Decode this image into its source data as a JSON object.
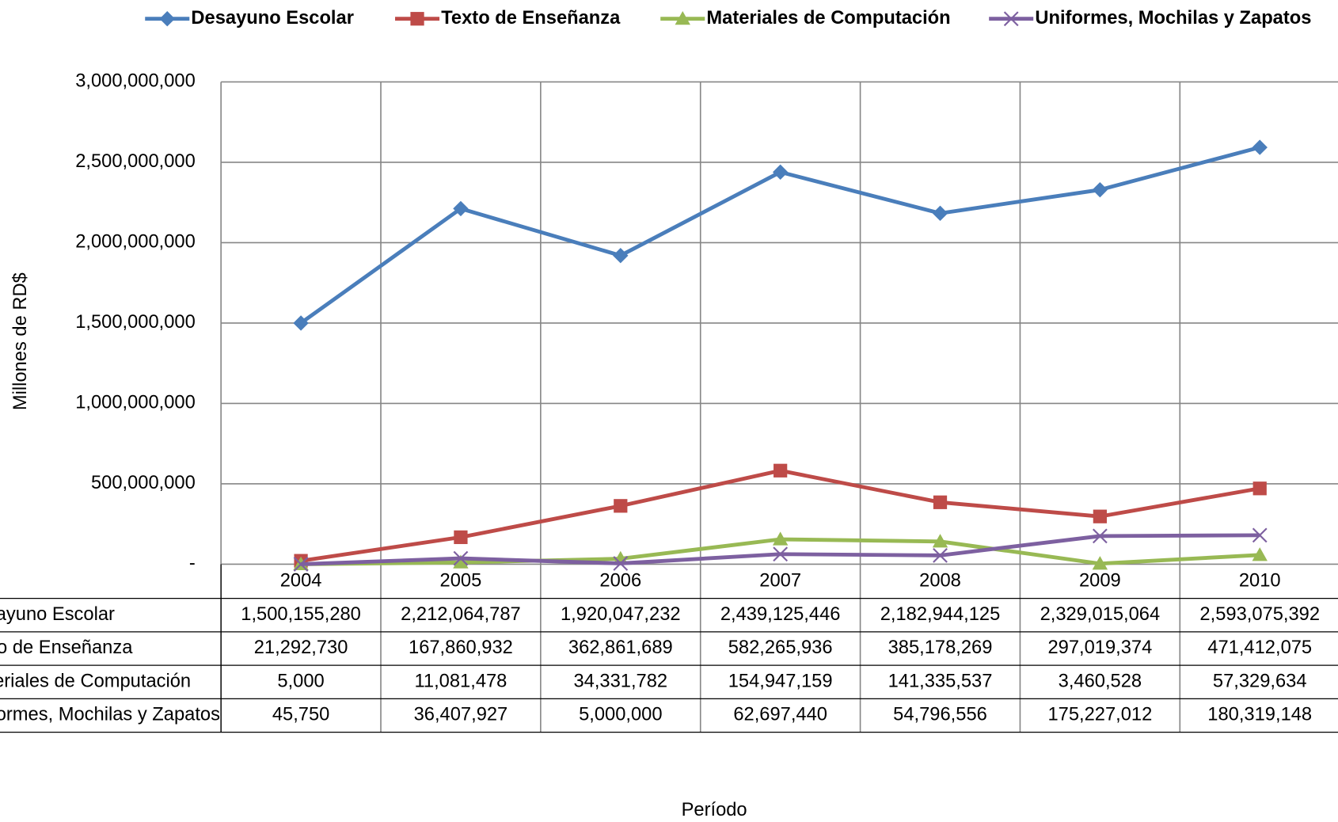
{
  "chart_data": {
    "type": "line",
    "categories": [
      "2004",
      "2005",
      "2006",
      "2007",
      "2008",
      "2009",
      "2010"
    ],
    "series": [
      {
        "name": "Desayuno Escolar",
        "color": "#4a7ebb",
        "marker": "diamond",
        "values": [
          1500155280,
          2212064787,
          1920047232,
          2439125446,
          2182944125,
          2329015064,
          2593075392
        ],
        "value_labels": [
          "1,500,155,280",
          "2,212,064,787",
          "1,920,047,232",
          "2,439,125,446",
          "2,182,944,125",
          "2,329,015,064",
          "2,593,075,392"
        ]
      },
      {
        "name": "Texto de Enseñanza",
        "color": "#be4b48",
        "marker": "square",
        "values": [
          21292730,
          167860932,
          362861689,
          582265936,
          385178269,
          297019374,
          471412075
        ],
        "value_labels": [
          "21,292,730",
          "167,860,932",
          "362,861,689",
          "582,265,936",
          "385,178,269",
          "297,019,374",
          "471,412,075"
        ]
      },
      {
        "name": "Materiales de Computación",
        "color": "#98b954",
        "marker": "triangle",
        "values": [
          5000,
          11081478,
          34331782,
          154947159,
          141335537,
          3460528,
          57329634
        ],
        "value_labels": [
          "5,000",
          "11,081,478",
          "34,331,782",
          "154,947,159",
          "141,335,537",
          "3,460,528",
          "57,329,634"
        ]
      },
      {
        "name": "Uniformes, Mochilas y Zapatos",
        "color": "#7d60a0",
        "marker": "x",
        "values": [
          45750,
          36407927,
          5000000,
          62697440,
          54796556,
          175227012,
          180319148
        ],
        "value_labels": [
          "45,750",
          "36,407,927",
          "5,000,000",
          "62,697,440",
          "54,796,556",
          "175,227,012",
          "180,319,148"
        ]
      }
    ],
    "y_label": "Millones de RD$",
    "x_label": "Período",
    "ylim": [
      0,
      3000000000
    ],
    "yticks": [
      {
        "value": 0,
        "label": "-"
      },
      {
        "value": 500000000,
        "label": "500,000,000"
      },
      {
        "value": 1000000000,
        "label": "1,000,000,000"
      },
      {
        "value": 1500000000,
        "label": "1,500,000,000"
      },
      {
        "value": 2000000000,
        "label": "2,000,000,000"
      },
      {
        "value": 2500000000,
        "label": "2,500,000,000"
      },
      {
        "value": 3000000000,
        "label": "3,000,000,000"
      }
    ],
    "grid": true,
    "legend": "top",
    "data_table": true
  }
}
